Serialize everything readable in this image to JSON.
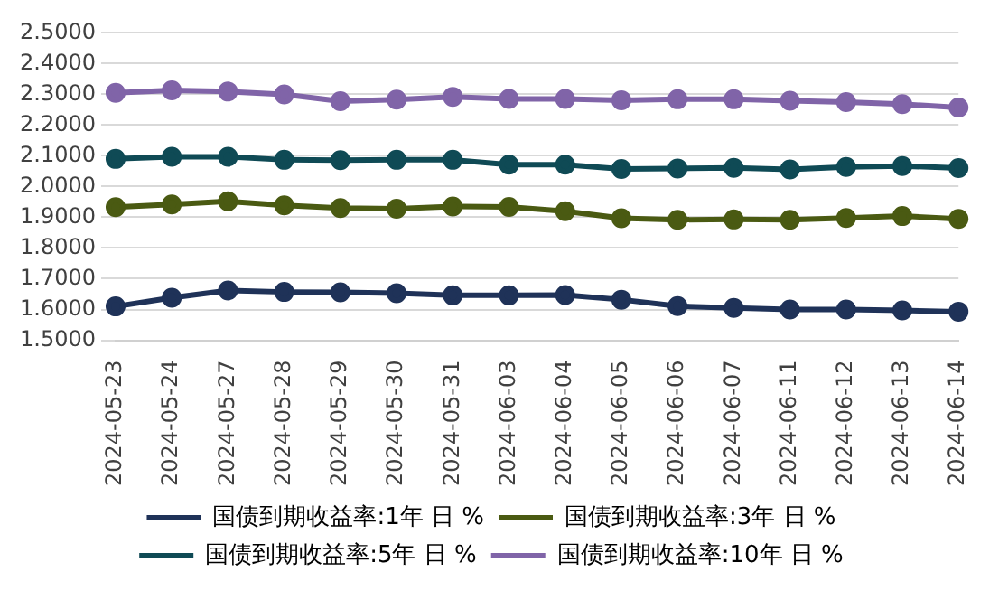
{
  "chart_data": {
    "type": "line",
    "categories": [
      "2024-05-23",
      "2024-05-24",
      "2024-05-27",
      "2024-05-28",
      "2024-05-29",
      "2024-05-30",
      "2024-05-31",
      "2024-06-03",
      "2024-06-04",
      "2024-06-05",
      "2024-06-06",
      "2024-06-07",
      "2024-06-11",
      "2024-06-12",
      "2024-06-13",
      "2024-06-14"
    ],
    "series": [
      {
        "name": "国债到期收益率:1年 日 %",
        "color": "#1f3258",
        "values": [
          1.61,
          1.638,
          1.662,
          1.657,
          1.656,
          1.653,
          1.646,
          1.646,
          1.647,
          1.632,
          1.611,
          1.605,
          1.6,
          1.6,
          1.597,
          1.593
        ]
      },
      {
        "name": "国债到期收益率:3年 日 %",
        "color": "#4a5a12",
        "values": [
          1.933,
          1.942,
          1.952,
          1.939,
          1.93,
          1.928,
          1.935,
          1.934,
          1.92,
          1.897,
          1.892,
          1.893,
          1.892,
          1.898,
          1.904,
          1.895
        ]
      },
      {
        "name": "国债到期收益率:5年 日 %",
        "color": "#0f4a55",
        "values": [
          2.09,
          2.097,
          2.097,
          2.087,
          2.086,
          2.087,
          2.087,
          2.071,
          2.071,
          2.057,
          2.059,
          2.061,
          2.056,
          2.064,
          2.067,
          2.06
        ]
      },
      {
        "name": "国债到期收益率:10年 日 %",
        "color": "#8064a8",
        "values": [
          2.305,
          2.313,
          2.309,
          2.3,
          2.278,
          2.283,
          2.292,
          2.285,
          2.285,
          2.281,
          2.284,
          2.284,
          2.279,
          2.275,
          2.268,
          2.257
        ]
      }
    ],
    "ylim": [
      1.5,
      2.5
    ],
    "yticks": [
      {
        "value": 1.5,
        "label": "1.5000"
      },
      {
        "value": 1.6,
        "label": "1.6000"
      },
      {
        "value": 1.7,
        "label": "1.7000"
      },
      {
        "value": 1.8,
        "label": "1.8000"
      },
      {
        "value": 1.9,
        "label": "1.9000"
      },
      {
        "value": 2.0,
        "label": "2.0000"
      },
      {
        "value": 2.1,
        "label": "2.1000"
      },
      {
        "value": 2.2,
        "label": "2.2000"
      },
      {
        "value": 2.3,
        "label": "2.3000"
      },
      {
        "value": 2.4,
        "label": "2.4000"
      },
      {
        "value": 2.5,
        "label": "2.5000"
      }
    ],
    "grid": "y",
    "legend": "bottom",
    "marker": "circle",
    "line_style": "solid"
  }
}
